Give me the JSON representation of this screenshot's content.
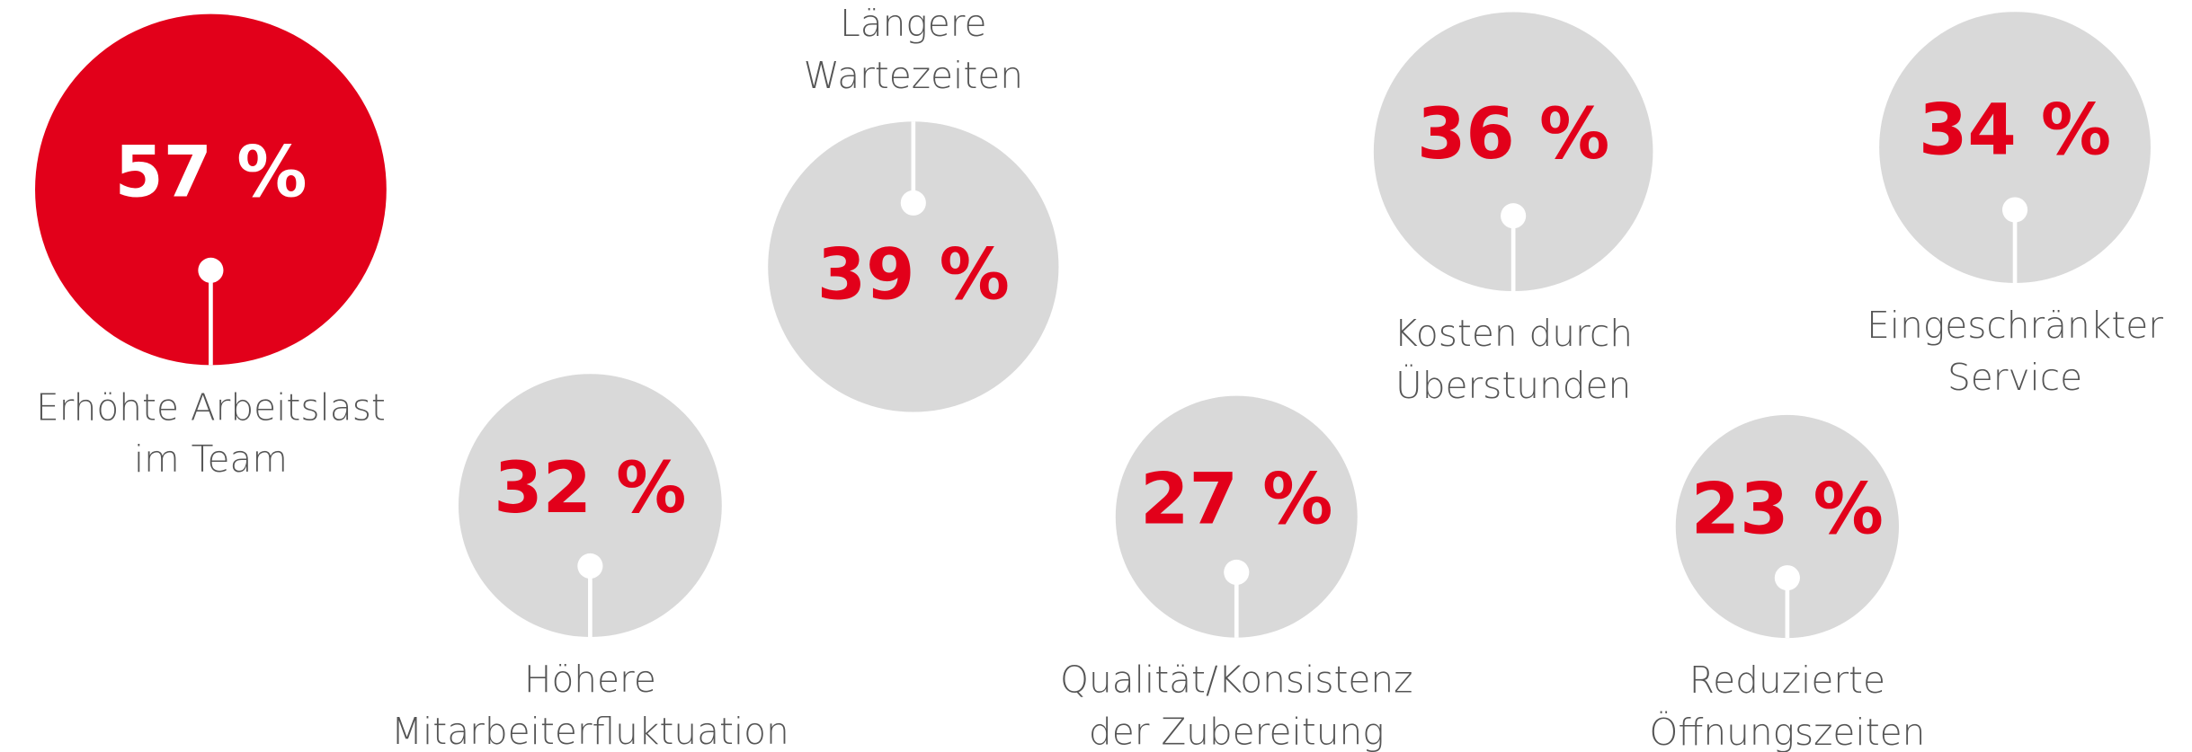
{
  "chart_data": {
    "type": "bubble",
    "categories": [
      [
        "Erhöhte Arbeitslast",
        "im Team"
      ],
      [
        "Längere",
        "Wartezeiten"
      ],
      [
        "Höhere",
        "Mitarbeiterfluktuation"
      ],
      [
        "Kosten durch",
        "Überstunden"
      ],
      [
        "Qualität/Konsistenz",
        "der Zubereitung"
      ],
      [
        "Eingeschränkter",
        "Service"
      ],
      [
        "Reduzierte",
        "Öffnungszeiten"
      ]
    ],
    "values": [
      57,
      39,
      32,
      36,
      27,
      34,
      23
    ],
    "value_labels": [
      "57 %",
      "39 %",
      "32 %",
      "36 %",
      "27 %",
      "34 %",
      "23 %"
    ],
    "colors": [
      "#e2001a",
      "#d9d9d9",
      "#d9d9d9",
      "#d9d9d9",
      "#d9d9d9",
      "#d9d9d9",
      "#d9d9d9"
    ],
    "label_colors": [
      "#ffffff",
      "#e2001a",
      "#e2001a",
      "#e2001a",
      "#e2001a",
      "#e2001a",
      "#e2001a"
    ]
  }
}
